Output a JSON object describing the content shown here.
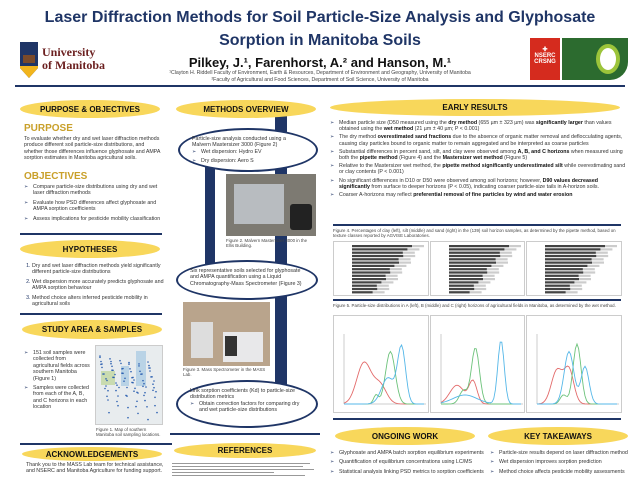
{
  "header": {
    "title_line1": "Laser Diffraction Methods for Soil Particle-Size Analysis and Glyphosate",
    "title_line2": "Sorption in Manitoba Soils",
    "authors": "Pilkey, J.¹, Farenhorst, A.² and Hanson, M.¹",
    "affil1": "¹Clayton H. Riddell Faculty of Environment, Earth & Resources, Department of Environment and Geography, University of Manitoba",
    "affil2": "²Faculty of Agricultural and Food Sciences, Department of Soil Science, University of Manitoba",
    "logo_left": "University of Manitoba",
    "logo_right": "NSERC CRSNG",
    "colors": {
      "navy": "#1f3566",
      "pill": "#f8d75b",
      "gold": "#c9a02a"
    }
  },
  "purpose": {
    "header": "PURPOSE & OBJECTIVES",
    "purpose_title": "PURPOSE",
    "purpose_text": "To evaluate whether dry and wet laser diffraction methods produce different soil particle-size distributions, and whether those differences influence glyphosate and AMPA sorption estimates in Manitoba agricultural soils.",
    "objectives_title": "OBJECTIVES",
    "objectives": [
      "Compare particle-size distributions using dry and wet laser diffraction methods",
      "Evaluate how PSD differences affect glyphosate and AMPA sorption coefficients",
      "Assess implications for pesticide mobility classification"
    ]
  },
  "hypotheses": {
    "header": "HYPOTHESES",
    "items": [
      "Dry and wet laser diffraction methods yield significantly different particle-size distributions",
      "Wet dispersion more accurately predicts glyphosate and AMPA sorption behaviour",
      "Method choice alters inferred pesticide mobility in agricultural soils"
    ]
  },
  "study": {
    "header": "STUDY AREA & SAMPLES",
    "items": [
      "151 soil samples were collected from agricultural fields across southern Manitoba (Figure 1)",
      "Samples were collected from each of the A, B, and C horizons in each location"
    ],
    "fig1_caption": "Figure 1. Map of southern Manitoba soil sampling locations."
  },
  "ack": {
    "header": "ACKNOWLEDGEMENTS",
    "text": "Thank you to the MASS Lab team for technical assistance, and NSERC and Manitoba Agriculture for funding support."
  },
  "methods": {
    "header": "METHODS OVERVIEW",
    "step1": "Particle-size analysis conducted using a Malvern Mastersizer 3000 (Figure 2)",
    "step1_sub": [
      "Wet dispersion: Hydro EV",
      "Dry dispersion: Aero S"
    ],
    "fig2_caption": "Figure 2. Malvern Mastersizer 3000 in the Ellis Building.",
    "step2": "Six representative soils selected for glyphosate and AMPA quantification using a Liquid Chromatography-Mass Spectrometer (Figure 3)",
    "fig3_caption": "Figure 3. Mass Spectrometer in the MASS Lab.",
    "step3": "Link sorption coefficients (Kd) to particle-size distribution metrics",
    "step3_sub": [
      "Obtain correction factors for comparing dry and wet particle-size distributions"
    ]
  },
  "references": {
    "header": "REFERENCES"
  },
  "results": {
    "header": "EARLY RESULTS",
    "items": [
      [
        "Median particle size (D50 measured using the ",
        "dry method",
        " (655 µm ± 323 µm) was ",
        "significantly larger",
        " than values obtained using the ",
        "wet method",
        " (21 µm ± 40 µm; P < 0.001)"
      ],
      [
        "The dry method ",
        "overestimated sand fractions",
        " due to the absence of organic matter removal and deflocculating agents, causing clay particles bound to organic matter to remain aggregated and be interpreted as coarse particles"
      ],
      [
        "Substantial differences in percent sand, silt, and clay were observed among ",
        "A, B, and C horizons",
        " when measured using both the ",
        "pipette method",
        " (Figure 4) and the ",
        "Mastersizer wet method",
        " (Figure 5)"
      ],
      [
        "Relative to the Mastersizer wet method, the ",
        "pipette method significantly underestimated silt",
        " while overestimating sand or clay contents (P < 0.001)"
      ],
      [
        "No significant differences in D10 or D50 were observed among soil horizons; however, ",
        "D90 values decreased significantly",
        " from surface to deeper horizons (P < 0.05), indicating coarser particle-size tails in A-horizon soils."
      ],
      [
        "Coarser A-horizons may reflect ",
        "preferential removal of fine particles by wind and water erosion",
        ""
      ]
    ],
    "fig4_caption": "Figure 4. Percentages of clay (left), silt (middle) and sand (right) in the (139) soil horizon samples, as determined by the pipette method, based on texture classes reported by AGVISE Laboratories.",
    "fig5_caption": "Figure 5. Particle-size distributions in A (left), B (middle) and C (right) horizons of agricultural fields in Manitoba, as determined by the wet method."
  },
  "ongoing": {
    "header": "ONGOING WORK",
    "items": [
      "Glyphosate and AMPA batch sorption equilibrium experiments",
      "Quantification of equilibrium concentrations using LC/MS",
      "Statistical analysis linking PSD metrics to sorption coefficients"
    ]
  },
  "takeaways": {
    "header": "KEY TAKEAWAYS",
    "items": [
      "Particle-size results depend on laser diffraction method",
      "Wet dispersion improves sorption prediction",
      "Method choice affects pesticide mobility assessments"
    ]
  }
}
